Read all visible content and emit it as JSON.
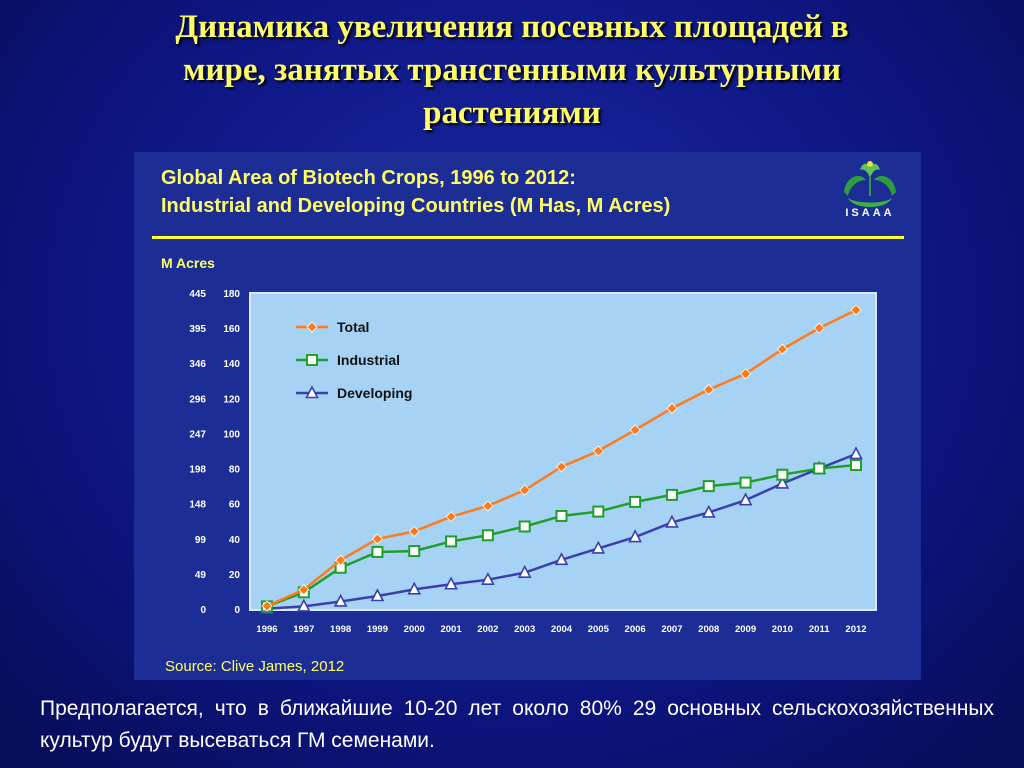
{
  "slide": {
    "title_lines": [
      "Динамика увеличения  посевных  площадей  в",
      "мире, занятых трансгенными  культурными",
      "растениями"
    ],
    "caption": "Предполагается, что в ближайшие 10-20 лет около 80% 29 основных сельскохозяйственных культур будут высеваться ГМ семенами."
  },
  "chart_data": {
    "type": "line",
    "title_lines": [
      "Global Area of Biotech Crops, 1996 to 2012:",
      "Industrial and Developing Countries (M Has, M Acres)"
    ],
    "logo_text": "ISAAA",
    "left_axis_label": "M Acres",
    "left_axis_ticks": [
      "0",
      "49",
      "99",
      "148",
      "198",
      "247",
      "296",
      "346",
      "395",
      "445"
    ],
    "right_axis_ticks": [
      "0",
      "20",
      "40",
      "60",
      "80",
      "100",
      "120",
      "140",
      "160",
      "180"
    ],
    "ylim": [
      0,
      180
    ],
    "grid": false,
    "legend_position": "top-left",
    "categories": [
      "1996",
      "1997",
      "1998",
      "1999",
      "2000",
      "2001",
      "2002",
      "2003",
      "2004",
      "2005",
      "2006",
      "2007",
      "2008",
      "2009",
      "2010",
      "2011",
      "2012"
    ],
    "series": [
      {
        "name": "Total",
        "color": "#ff7a1a",
        "marker": "diamond",
        "values": [
          1.7,
          11,
          27.8,
          39.9,
          44.2,
          52.6,
          58.7,
          67.7,
          81,
          90,
          102,
          114.3,
          125,
          134,
          148,
          160,
          170.3
        ]
      },
      {
        "name": "Industrial",
        "color": "#1f9e2a",
        "marker": "square",
        "values": [
          1.5,
          9.5,
          23.5,
          32.5,
          33,
          38.5,
          42,
          47,
          53,
          55.5,
          61,
          65,
          70,
          72,
          76.5,
          80,
          82
        ]
      },
      {
        "name": "Developing",
        "color": "#3a3fb0",
        "marker": "triangle",
        "values": [
          0.2,
          1.5,
          4.3,
          7.4,
          11.2,
          14.1,
          16.7,
          20.7,
          28,
          34.5,
          41,
          49.3,
          55,
          62,
          71.5,
          80,
          88.3
        ]
      }
    ],
    "source": "Source: Clive James, 2012"
  }
}
